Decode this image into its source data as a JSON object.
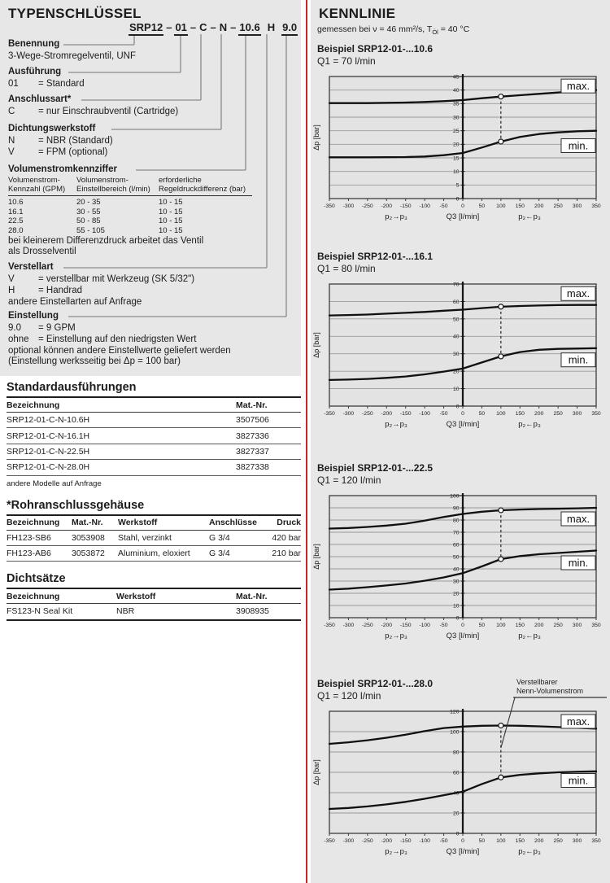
{
  "typenschluessel": {
    "title": "TYPENSCHLÜSSEL",
    "code_segments": [
      {
        "t": "SRP12",
        "u": true,
        "sep": "–"
      },
      {
        "t": "01",
        "u": true,
        "sep": "–"
      },
      {
        "t": "C",
        "u": false,
        "sep": "–"
      },
      {
        "t": "N",
        "u": false,
        "sep": "–"
      },
      {
        "t": "10.6",
        "u": true,
        "sep": " "
      },
      {
        "t": "H",
        "u": false,
        "sep": " "
      },
      {
        "t": "9.0",
        "u": true,
        "sep": ""
      }
    ],
    "sections": [
      {
        "label": "Benennung",
        "items": [
          {
            "text": "3-Wege-Stromregelventil, UNF"
          }
        ]
      },
      {
        "label": "Ausführung",
        "items": [
          {
            "k": "01",
            "v": "= Standard"
          }
        ]
      },
      {
        "label": "Anschlussart*",
        "items": [
          {
            "k": "C",
            "v": "= nur Einschraubventil (Cartridge)"
          }
        ]
      },
      {
        "label": "Dichtungswerkstoff",
        "items": [
          {
            "k": "N",
            "v": "= NBR (Standard)"
          },
          {
            "k": "V",
            "v": "= FPM (optional)"
          }
        ]
      },
      {
        "label": "Volumenstromkennziffer",
        "items": []
      },
      {
        "label": "Verstellart",
        "items": [
          {
            "k": "V",
            "v": "= verstellbar mit Werkzeug (SK 5/32\")"
          },
          {
            "k": "H",
            "v": "= Handrad"
          },
          {
            "text": "andere Einstellarten auf Anfrage"
          }
        ]
      },
      {
        "label": "Einstellung",
        "items": [
          {
            "k": "9.0",
            "v": "= 9 GPM"
          },
          {
            "k": "ohne",
            "v": "= Einstellung auf den niedrigsten Wert"
          },
          {
            "text": "optional können andere Einstellwerte geliefert werden"
          },
          {
            "text": "(Einstellung werksseitig bei Δp = 100 bar)"
          }
        ]
      }
    ],
    "volumen_table": {
      "headers": [
        [
          "Volumenstrom-",
          "Kennzahl (GPM)"
        ],
        [
          "Volumenstrom-",
          "Einstellbereich (l/min)"
        ],
        [
          "erforderliche",
          "Regeldruckdifferenz (bar)"
        ]
      ],
      "rows": [
        [
          "10.6",
          "20 - 35",
          "10 - 15"
        ],
        [
          "16.1",
          "30 - 55",
          "10 - 15"
        ],
        [
          "22.5",
          "50 - 85",
          "10 - 15"
        ],
        [
          "28.0",
          "55 - 105",
          "10 - 15"
        ]
      ],
      "note_lines": [
        "bei kleinerem Differenzdruck arbeitet das Ventil",
        "als Drosselventil"
      ]
    }
  },
  "standard_table": {
    "title": "Standardausführungen",
    "headers": [
      "Bezeichnung",
      "Mat.-Nr."
    ],
    "rows": [
      [
        "SRP12-01-C-N-10.6H",
        "3507506"
      ],
      [
        "SRP12-01-C-N-16.1H",
        "3827336"
      ],
      [
        "SRP12-01-C-N-22.5H",
        "3827337"
      ],
      [
        "SRP12-01-C-N-28.0H",
        "3827338"
      ]
    ],
    "note": "andere Modelle auf Anfrage"
  },
  "rohr_table": {
    "title": "*Rohranschlussgehäuse",
    "headers": [
      "Bezeichnung",
      "Mat.-Nr.",
      "Werkstoff",
      "Anschlüsse",
      "Druck"
    ],
    "rows": [
      [
        "FH123-SB6",
        "3053908",
        "Stahl, verzinkt",
        "G 3/4",
        "420 bar"
      ],
      [
        "FH123-AB6",
        "3053872",
        "Aluminium, eloxiert",
        "G 3/4",
        "210 bar"
      ]
    ]
  },
  "dicht_table": {
    "title": "Dichtsätze",
    "headers": [
      "Bezeichnung",
      "Werkstoff",
      "Mat.-Nr."
    ],
    "rows": [
      [
        "FS123-N Seal Kit",
        "NBR",
        "3908935"
      ]
    ]
  },
  "kennlinie": {
    "title": "KENNLINIE",
    "subtitle": {
      "pre": "gemessen bei ν = 46 mm²/s, T",
      "sub": "Öl",
      "post": " = 40 °C"
    }
  },
  "chart_data": [
    {
      "type": "line",
      "title": "Beispiel SRP12-01-...10.6",
      "flow": "Q1 = 70 l/min",
      "ylabel": "Δp [bar]",
      "xlabel_left": "p₂→p₃",
      "xlabel_center": "Q3 [l/min]",
      "xlabel_right": "p₂←p₃",
      "xlim": [
        -350,
        350
      ],
      "xtick_step": 50,
      "ylim": [
        0,
        45
      ],
      "ytick_step": 5,
      "grid": "horizontal",
      "marker_x": 100,
      "series": [
        {
          "name": "max.",
          "marker_y": 37.6,
          "label_pos": [
            303,
            41.5
          ],
          "points": [
            [
              -350,
              35.2
            ],
            [
              -250,
              35.2
            ],
            [
              -150,
              35.4
            ],
            [
              -100,
              35.6
            ],
            [
              -50,
              35.9
            ],
            [
              0,
              36.3
            ],
            [
              50,
              37
            ],
            [
              100,
              37.6
            ],
            [
              150,
              38.1
            ],
            [
              200,
              38.6
            ],
            [
              250,
              39.1
            ],
            [
              300,
              39.6
            ],
            [
              350,
              40
            ]
          ]
        },
        {
          "name": "min.",
          "marker_y": 21,
          "label_pos": [
            303,
            19.5
          ],
          "points": [
            [
              -350,
              15.2
            ],
            [
              -250,
              15.2
            ],
            [
              -150,
              15.3
            ],
            [
              -100,
              15.5
            ],
            [
              -50,
              16
            ],
            [
              0,
              16.8
            ],
            [
              50,
              18.8
            ],
            [
              100,
              21
            ],
            [
              150,
              22.7
            ],
            [
              200,
              23.8
            ],
            [
              250,
              24.4
            ],
            [
              300,
              24.8
            ],
            [
              350,
              25
            ]
          ]
        }
      ]
    },
    {
      "type": "line",
      "title": "Beispiel SRP12-01-...16.1",
      "flow": "Q1 = 80 l/min",
      "ylabel": "Δp [bar]",
      "xlabel_left": "p₂→p₃",
      "xlabel_center": "Q3 [l/min]",
      "xlabel_right": "p₂←p₃",
      "xlim": [
        -350,
        350
      ],
      "xtick_step": 50,
      "ylim": [
        0,
        70
      ],
      "ytick_step": 10,
      "grid": "horizontal",
      "marker_x": 100,
      "series": [
        {
          "name": "max.",
          "marker_y": 57,
          "label_pos": [
            303,
            64.5
          ],
          "points": [
            [
              -350,
              52
            ],
            [
              -300,
              52.2
            ],
            [
              -250,
              52.5
            ],
            [
              -200,
              53
            ],
            [
              -150,
              53.5
            ],
            [
              -100,
              54
            ],
            [
              -50,
              54.7
            ],
            [
              0,
              55.3
            ],
            [
              50,
              56.2
            ],
            [
              100,
              57
            ],
            [
              150,
              57.4
            ],
            [
              200,
              57.7
            ],
            [
              250,
              57.9
            ],
            [
              300,
              58
            ],
            [
              350,
              58
            ]
          ]
        },
        {
          "name": "min.",
          "marker_y": 28.5,
          "label_pos": [
            303,
            26.5
          ],
          "points": [
            [
              -350,
              15
            ],
            [
              -300,
              15.2
            ],
            [
              -250,
              15.6
            ],
            [
              -200,
              16.2
            ],
            [
              -150,
              17
            ],
            [
              -100,
              18.2
            ],
            [
              -50,
              19.8
            ],
            [
              0,
              21.5
            ],
            [
              50,
              25
            ],
            [
              100,
              28.5
            ],
            [
              150,
              31
            ],
            [
              200,
              32.3
            ],
            [
              250,
              32.8
            ],
            [
              300,
              33
            ],
            [
              350,
              33.2
            ]
          ]
        }
      ]
    },
    {
      "type": "line",
      "title": "Beispiel SRP12-01-...22.5",
      "flow": "Q1 = 120 l/min",
      "ylabel": "Δp [bar]",
      "xlabel_left": "p₂→p₃",
      "xlabel_center": "Q3 [l/min]",
      "xlabel_right": "p₂←p₃",
      "xlim": [
        -350,
        350
      ],
      "xtick_step": 50,
      "ylim": [
        0,
        100
      ],
      "ytick_step": 10,
      "grid": "horizontal",
      "marker_x": 100,
      "series": [
        {
          "name": "max.",
          "marker_y": 88,
          "label_pos": [
            303,
            81
          ],
          "points": [
            [
              -350,
              73
            ],
            [
              -300,
              73.5
            ],
            [
              -250,
              74.3
            ],
            [
              -200,
              75.5
            ],
            [
              -150,
              77
            ],
            [
              -100,
              79.5
            ],
            [
              -50,
              82.5
            ],
            [
              0,
              85
            ],
            [
              50,
              86.8
            ],
            [
              100,
              88
            ],
            [
              150,
              88.6
            ],
            [
              200,
              89
            ],
            [
              250,
              89.3
            ],
            [
              300,
              89.6
            ],
            [
              350,
              90
            ]
          ]
        },
        {
          "name": "min.",
          "marker_y": 48,
          "label_pos": [
            303,
            45
          ],
          "points": [
            [
              -350,
              23
            ],
            [
              -300,
              23.8
            ],
            [
              -250,
              25
            ],
            [
              -200,
              26.4
            ],
            [
              -150,
              28
            ],
            [
              -100,
              30.3
            ],
            [
              -50,
              33
            ],
            [
              0,
              36.5
            ],
            [
              50,
              42
            ],
            [
              100,
              48
            ],
            [
              150,
              50.5
            ],
            [
              200,
              52
            ],
            [
              250,
              53
            ],
            [
              300,
              54
            ],
            [
              350,
              55
            ]
          ]
        }
      ]
    },
    {
      "type": "line",
      "title": "Beispiel SRP12-01-...28.0",
      "flow": "Q1 = 120 l/min",
      "ylabel": "Δp [bar]",
      "xlabel_left": "p₂→p₃",
      "xlabel_center": "Q3 [l/min]",
      "xlabel_right": "p₂←p₃",
      "xlim": [
        -350,
        350
      ],
      "xtick_step": 50,
      "ylim": [
        0,
        120
      ],
      "ytick_step": 20,
      "grid": "horizontal",
      "marker_x": 100,
      "annotation": {
        "lines": [
          "Verstellbarer",
          "Nenn-Volumenstrom"
        ],
        "target": [
          100,
          84
        ]
      },
      "series": [
        {
          "name": "max.",
          "marker_y": 106,
          "label_pos": [
            303,
            110
          ],
          "points": [
            [
              -350,
              88
            ],
            [
              -300,
              89.5
            ],
            [
              -250,
              91.5
            ],
            [
              -200,
              94
            ],
            [
              -150,
              97
            ],
            [
              -100,
              100.5
            ],
            [
              -50,
              103.5
            ],
            [
              0,
              105
            ],
            [
              50,
              105.8
            ],
            [
              100,
              106
            ],
            [
              150,
              105.8
            ],
            [
              200,
              105.2
            ],
            [
              250,
              104.5
            ],
            [
              300,
              103.7
            ],
            [
              350,
              103
            ]
          ]
        },
        {
          "name": "min.",
          "marker_y": 55,
          "label_pos": [
            303,
            52
          ],
          "points": [
            [
              -350,
              24
            ],
            [
              -300,
              25
            ],
            [
              -250,
              26.5
            ],
            [
              -200,
              28.5
            ],
            [
              -150,
              31
            ],
            [
              -100,
              34
            ],
            [
              -50,
              37.5
            ],
            [
              0,
              41
            ],
            [
              50,
              48.5
            ],
            [
              100,
              55
            ],
            [
              150,
              57.5
            ],
            [
              200,
              59
            ],
            [
              250,
              60
            ],
            [
              300,
              60.6
            ],
            [
              350,
              61
            ]
          ]
        }
      ]
    }
  ]
}
